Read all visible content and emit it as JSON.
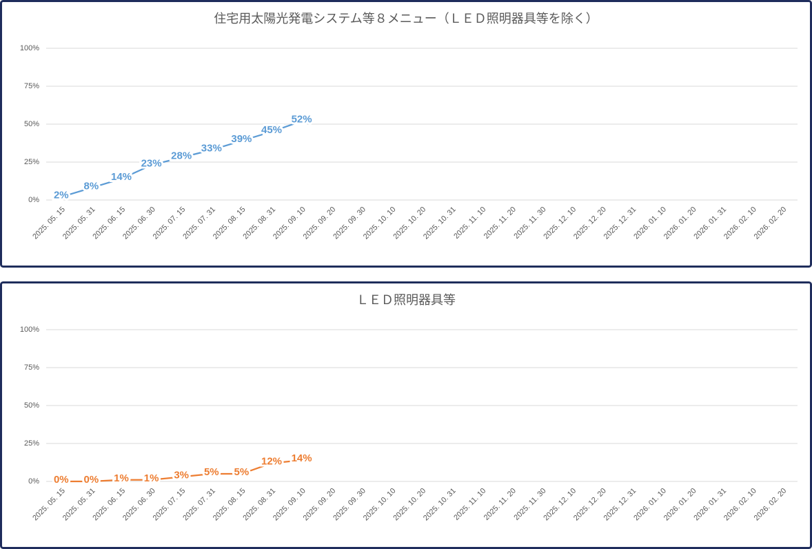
{
  "chart_data": [
    {
      "type": "line",
      "title": "住宅用太陽光発電システム等８メニュー（ＬＥＤ照明器具等を除く）",
      "categories": [
        "2025. 05. 15",
        "2025. 05. 31",
        "2025. 06. 15",
        "2025. 06. 30",
        "2025. 07. 15",
        "2025. 07. 31",
        "2025. 08. 15",
        "2025. 08. 31",
        "2025. 09. 10",
        "2025. 09. 20",
        "2025. 09. 30",
        "2025. 10. 10",
        "2025. 10. 20",
        "2025. 10. 31",
        "2025. 11. 10",
        "2025. 11. 20",
        "2025. 11. 30",
        "2025. 12. 10",
        "2025. 12. 20",
        "2025. 12. 31",
        "2026. 01. 10",
        "2026. 01. 20",
        "2026. 01. 31",
        "2026. 02. 10",
        "2026. 02. 20"
      ],
      "values": [
        2,
        8,
        14,
        23,
        28,
        33,
        39,
        45,
        52,
        null,
        null,
        null,
        null,
        null,
        null,
        null,
        null,
        null,
        null,
        null,
        null,
        null,
        null,
        null,
        null
      ],
      "value_labels": [
        "2%",
        "8%",
        "14%",
        "23%",
        "28%",
        "33%",
        "39%",
        "45%",
        "52%",
        null,
        null,
        null,
        null,
        null,
        null,
        null,
        null,
        null,
        null,
        null,
        null,
        null,
        null,
        null,
        null
      ],
      "color": "#5b9bd5",
      "ylim": [
        0,
        100
      ],
      "yticks": [
        {
          "value": 0,
          "label": "0%"
        },
        {
          "value": 25,
          "label": "25%"
        },
        {
          "value": 50,
          "label": "50%"
        },
        {
          "value": 75,
          "label": "75%"
        },
        {
          "value": 100,
          "label": "100%"
        }
      ],
      "grid": true
    },
    {
      "type": "line",
      "title": "ＬＥＤ照明器具等",
      "categories": [
        "2025. 05. 15",
        "2025. 05. 31",
        "2025. 06. 15",
        "2025. 06. 30",
        "2025. 07. 15",
        "2025. 07. 31",
        "2025. 08. 15",
        "2025. 08. 31",
        "2025. 09. 10",
        "2025. 09. 20",
        "2025. 09. 30",
        "2025. 10. 10",
        "2025. 10. 20",
        "2025. 10. 31",
        "2025. 11. 10",
        "2025. 11. 20",
        "2025. 11. 30",
        "2025. 12. 10",
        "2025. 12. 20",
        "2025. 12. 31",
        "2026. 01. 10",
        "2026. 01. 20",
        "2026. 01. 31",
        "2026. 02. 10",
        "2026. 02. 20"
      ],
      "values": [
        0,
        0,
        1,
        1,
        3,
        5,
        5,
        12,
        14,
        null,
        null,
        null,
        null,
        null,
        null,
        null,
        null,
        null,
        null,
        null,
        null,
        null,
        null,
        null,
        null
      ],
      "value_labels": [
        "0%",
        "0%",
        "1%",
        "1%",
        "3%",
        "5%",
        "5%",
        "12%",
        "14%",
        null,
        null,
        null,
        null,
        null,
        null,
        null,
        null,
        null,
        null,
        null,
        null,
        null,
        null,
        null,
        null
      ],
      "color": "#ed7d31",
      "ylim": [
        0,
        100
      ],
      "yticks": [
        {
          "value": 0,
          "label": "0%"
        },
        {
          "value": 25,
          "label": "25%"
        },
        {
          "value": 50,
          "label": "50%"
        },
        {
          "value": 75,
          "label": "75%"
        },
        {
          "value": 100,
          "label": "100%"
        }
      ],
      "grid": true
    }
  ]
}
